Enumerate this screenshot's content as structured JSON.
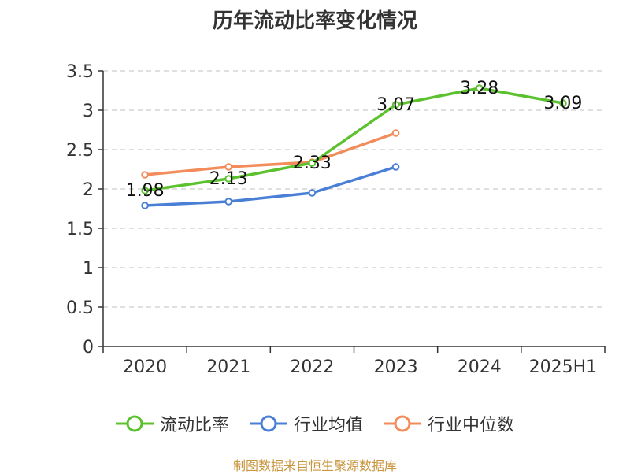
{
  "chart_data": {
    "type": "line",
    "title": "历年流动比率变化情况",
    "categories": [
      "2020",
      "2021",
      "2022",
      "2023",
      "2024",
      "2025H1"
    ],
    "ylim": [
      0,
      3.5
    ],
    "yticks": [
      "0",
      "0.5",
      "1",
      "1.5",
      "2",
      "2.5",
      "3",
      "3.5"
    ],
    "grid": true,
    "legend_position": "bottom",
    "series": [
      {
        "name": "流动比率",
        "color": "#5cc12e",
        "values": [
          1.98,
          2.13,
          2.33,
          3.07,
          3.28,
          3.09
        ],
        "labels": [
          "1.98",
          "2.13",
          "2.33",
          "3.07",
          "3.28",
          "3.09"
        ]
      },
      {
        "name": "行业均值",
        "color": "#4a7fd6",
        "values": [
          1.79,
          1.84,
          1.95,
          2.28,
          null,
          null
        ]
      },
      {
        "name": "行业中位数",
        "color": "#f28c5a",
        "values": [
          2.18,
          2.28,
          2.34,
          2.71,
          null,
          null
        ]
      }
    ]
  },
  "source": "制图数据来自恒生聚源数据库"
}
